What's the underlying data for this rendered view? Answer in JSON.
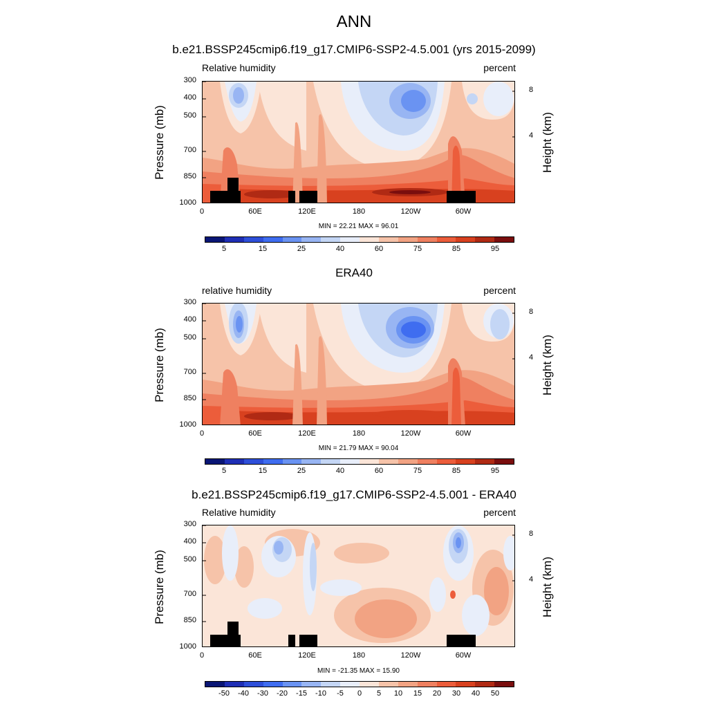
{
  "figure_title": "ANN",
  "colors": {
    "abs_palette": [
      "#0a1675",
      "#1f2fb5",
      "#2e4fd9",
      "#3f6df0",
      "#6a93f2",
      "#98b5f3",
      "#c4d6f5",
      "#e8eefa",
      "#fbe5d8",
      "#f6c3a9",
      "#f2a383",
      "#ef8060",
      "#ec5d3b",
      "#d8411f",
      "#b02a14",
      "#7a0e0e"
    ],
    "diff_palette": [
      "#0a1675",
      "#1f2fb5",
      "#2e4fd9",
      "#3f6df0",
      "#6a93f2",
      "#98b5f3",
      "#c4d6f5",
      "#e8eefa",
      "#fbe5d8",
      "#f6c3a9",
      "#f2a383",
      "#ef8060",
      "#ec5d3b",
      "#d8411f",
      "#b02a14",
      "#7a0e0e"
    ],
    "terrain": "#000000"
  },
  "chart_data": [
    {
      "type": "heatmap",
      "title": "b.e21.BSSP245cmip6.f19_g17.CMIP6-SSP2-4.5.001 (yrs 2015-2099)",
      "var_label": "Relative humidity",
      "units_label": "percent",
      "ylabel": "Pressure (mb)",
      "ylabel_right": "Height (km)",
      "yticks": [
        "300",
        "400",
        "500",
        "700",
        "850",
        "1000"
      ],
      "yticks_right": [
        "8",
        "4"
      ],
      "xticks": [
        "0",
        "60E",
        "120E",
        "180",
        "120W",
        "60W"
      ],
      "xlim": [
        0,
        355
      ],
      "min_max": "MIN =  22.21  MAX =  96.01",
      "colorbar_labels": [
        "5",
        "15",
        "25",
        "40",
        "60",
        "75",
        "85",
        "95"
      ]
    },
    {
      "type": "heatmap",
      "title": "ERA40",
      "var_label": "relative humidity",
      "units_label": "percent",
      "ylabel": "Pressure (mb)",
      "ylabel_right": "Height (km)",
      "yticks": [
        "300",
        "400",
        "500",
        "700",
        "850",
        "1000"
      ],
      "yticks_right": [
        "8",
        "4"
      ],
      "xticks": [
        "0",
        "60E",
        "120E",
        "180",
        "120W",
        "60W"
      ],
      "xlim": [
        0,
        355
      ],
      "min_max": "MIN =  21.79  MAX =  90.04",
      "colorbar_labels": [
        "5",
        "15",
        "25",
        "40",
        "60",
        "75",
        "85",
        "95"
      ]
    },
    {
      "type": "heatmap",
      "title": "b.e21.BSSP245cmip6.f19_g17.CMIP6-SSP2-4.5.001 - ERA40",
      "var_label": "Relative humidity",
      "units_label": "percent",
      "ylabel": "Pressure (mb)",
      "ylabel_right": "Height (km)",
      "yticks": [
        "300",
        "400",
        "500",
        "700",
        "850",
        "1000"
      ],
      "yticks_right": [
        "8",
        "4"
      ],
      "xticks": [
        "0",
        "60E",
        "120E",
        "180",
        "120W",
        "60W"
      ],
      "xlim": [
        0,
        355
      ],
      "min_max": "MIN = -21.35  MAX =  15.90",
      "colorbar_labels": [
        "-50",
        "-40",
        "-30",
        "-20",
        "-15",
        "-10",
        "-5",
        "0",
        "5",
        "10",
        "15",
        "20",
        "30",
        "40",
        "50"
      ]
    }
  ]
}
